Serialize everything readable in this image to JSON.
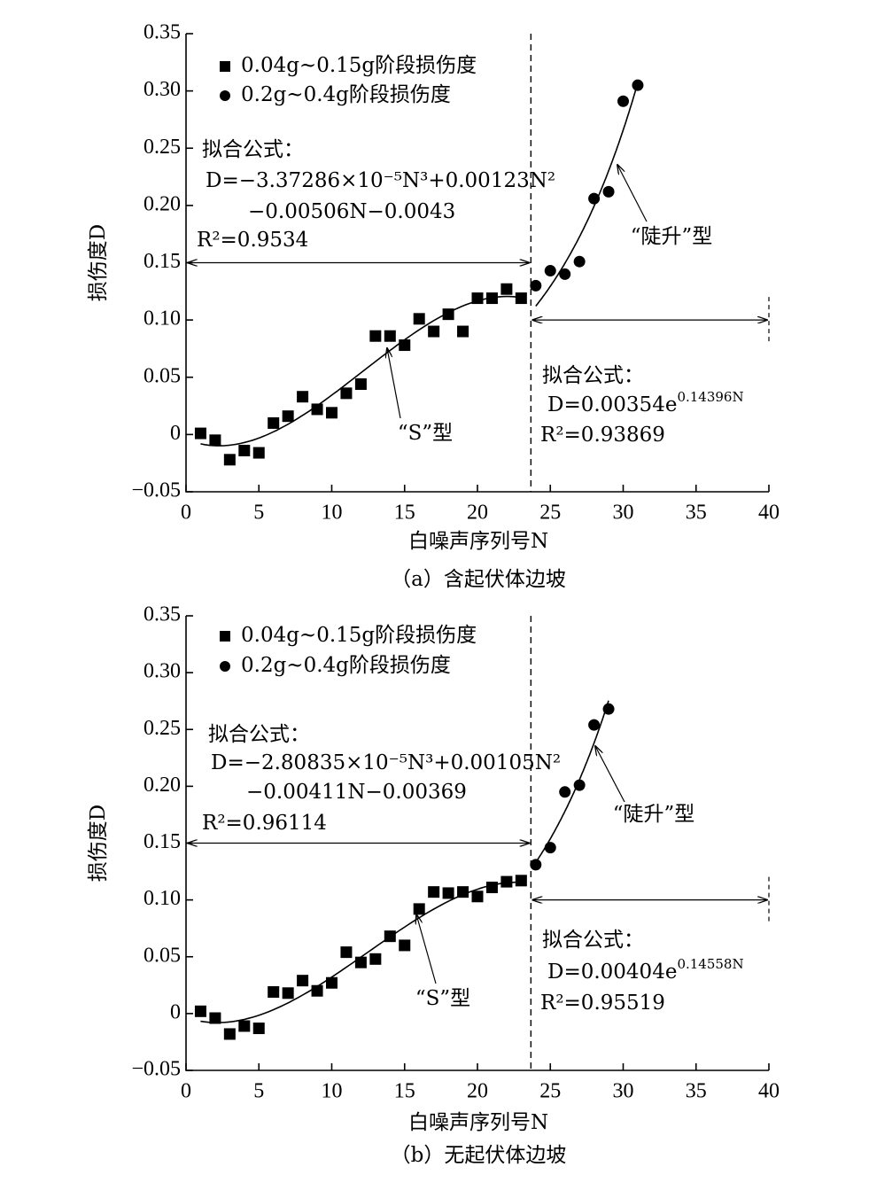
{
  "chart_data": [
    {
      "type": "scatter",
      "caption": "（a）含起伏体边坡",
      "xlabel": "白噪声序列号N",
      "ylabel": "损伤度D",
      "xlim": [
        0,
        40
      ],
      "xticks": [
        0,
        5,
        10,
        15,
        20,
        25,
        30,
        35,
        40
      ],
      "ylim": [
        -0.05,
        0.35
      ],
      "yticks": [
        {
          "value": -0.05,
          "label": "−0.05"
        },
        0,
        0.05,
        {
          "value": 0.1,
          "label": "0.10"
        },
        0.15,
        {
          "value": 0.2,
          "label": "0.20"
        },
        0.25,
        {
          "value": 0.3,
          "label": "0.30"
        },
        0.35
      ],
      "series": [
        {
          "name": "0.04g~0.15g阶段损伤度",
          "marker": "square",
          "color": "#000000",
          "x": [
            1,
            2,
            3,
            4,
            5,
            6,
            7,
            8,
            9,
            10,
            11,
            12,
            13,
            14,
            15,
            16,
            17,
            18,
            19,
            20,
            21,
            22,
            23
          ],
          "values": [
            0.001,
            -0.005,
            -0.022,
            -0.014,
            -0.016,
            0.01,
            0.016,
            0.033,
            0.022,
            0.019,
            0.036,
            0.044,
            0.086,
            0.086,
            0.078,
            0.101,
            0.09,
            0.105,
            0.09,
            0.119,
            0.119,
            0.127,
            0.119
          ],
          "fit": {
            "coefficients": [
              -3.37286e-05,
              0.00123,
              -0.00506,
              -0.0043
            ]
          }
        },
        {
          "name": "0.2g~0.4g阶段损伤度",
          "marker": "circle",
          "color": "#000000",
          "x": [
            24,
            25,
            26,
            27,
            28,
            29,
            30,
            31
          ],
          "values": [
            0.13,
            0.143,
            0.14,
            0.151,
            0.206,
            0.212,
            0.291,
            0.305
          ],
          "fit": {
            "a": 0.00354,
            "b": 0.14396
          }
        }
      ],
      "fit_texts": {
        "left": {
          "heading": "拟合公式：",
          "lines": [
            "D=−3.37286×10⁻⁵N³+0.00123N²",
            "−0.00506N−0.0043"
          ],
          "r2": "R²=0.9534"
        },
        "right": {
          "heading": "拟合公式：",
          "base": "D=0.00354e",
          "exponent": "0.14396N",
          "r2": "R²=0.93869"
        }
      },
      "curve_labels": [
        "“S”型",
        "“陡升”型"
      ]
    },
    {
      "type": "scatter",
      "caption": "（b）无起伏体边坡",
      "xlabel": "白噪声序列号N",
      "ylabel": "损伤度D",
      "xlim": [
        0,
        40
      ],
      "xticks": [
        0,
        5,
        10,
        15,
        20,
        25,
        30,
        35,
        40
      ],
      "ylim": [
        -0.05,
        0.35
      ],
      "yticks": [
        {
          "value": -0.05,
          "label": "−0.05"
        },
        0,
        0.05,
        {
          "value": 0.1,
          "label": "0.10"
        },
        0.15,
        {
          "value": 0.2,
          "label": "0.20"
        },
        0.25,
        {
          "value": 0.3,
          "label": "0.30"
        },
        0.35
      ],
      "series": [
        {
          "name": "0.04g~0.15g阶段损伤度",
          "marker": "square",
          "color": "#000000",
          "x": [
            1,
            2,
            3,
            4,
            5,
            6,
            7,
            8,
            9,
            10,
            11,
            12,
            13,
            14,
            15,
            16,
            17,
            18,
            19,
            20,
            21,
            22,
            23
          ],
          "values": [
            0.002,
            -0.004,
            -0.018,
            -0.011,
            -0.013,
            0.019,
            0.018,
            0.029,
            0.02,
            0.027,
            0.054,
            0.045,
            0.048,
            0.068,
            0.06,
            0.092,
            0.107,
            0.106,
            0.107,
            0.103,
            0.111,
            0.116,
            0.117
          ],
          "fit": {
            "coefficients": [
              -2.80835e-05,
              0.00105,
              -0.00411,
              -0.00369
            ]
          }
        },
        {
          "name": "0.2g~0.4g阶段损伤度",
          "marker": "circle",
          "color": "#000000",
          "x": [
            24,
            25,
            26,
            27,
            28,
            29
          ],
          "values": [
            0.131,
            0.146,
            0.195,
            0.201,
            0.254,
            0.268
          ],
          "fit": {
            "a": 0.00404,
            "b": 0.14558
          }
        }
      ],
      "fit_texts": {
        "left": {
          "heading": "拟合公式：",
          "lines": [
            "D=−2.80835×10⁻⁵N³+0.00105N²",
            "−0.00411N−0.00369"
          ],
          "r2": "R²=0.96114"
        },
        "right": {
          "heading": "拟合公式：",
          "base": "D=0.00404e",
          "exponent": "0.14558N",
          "r2": "R²=0.95519"
        }
      },
      "curve_labels": [
        "“S”型",
        "“陡升”型"
      ]
    }
  ]
}
